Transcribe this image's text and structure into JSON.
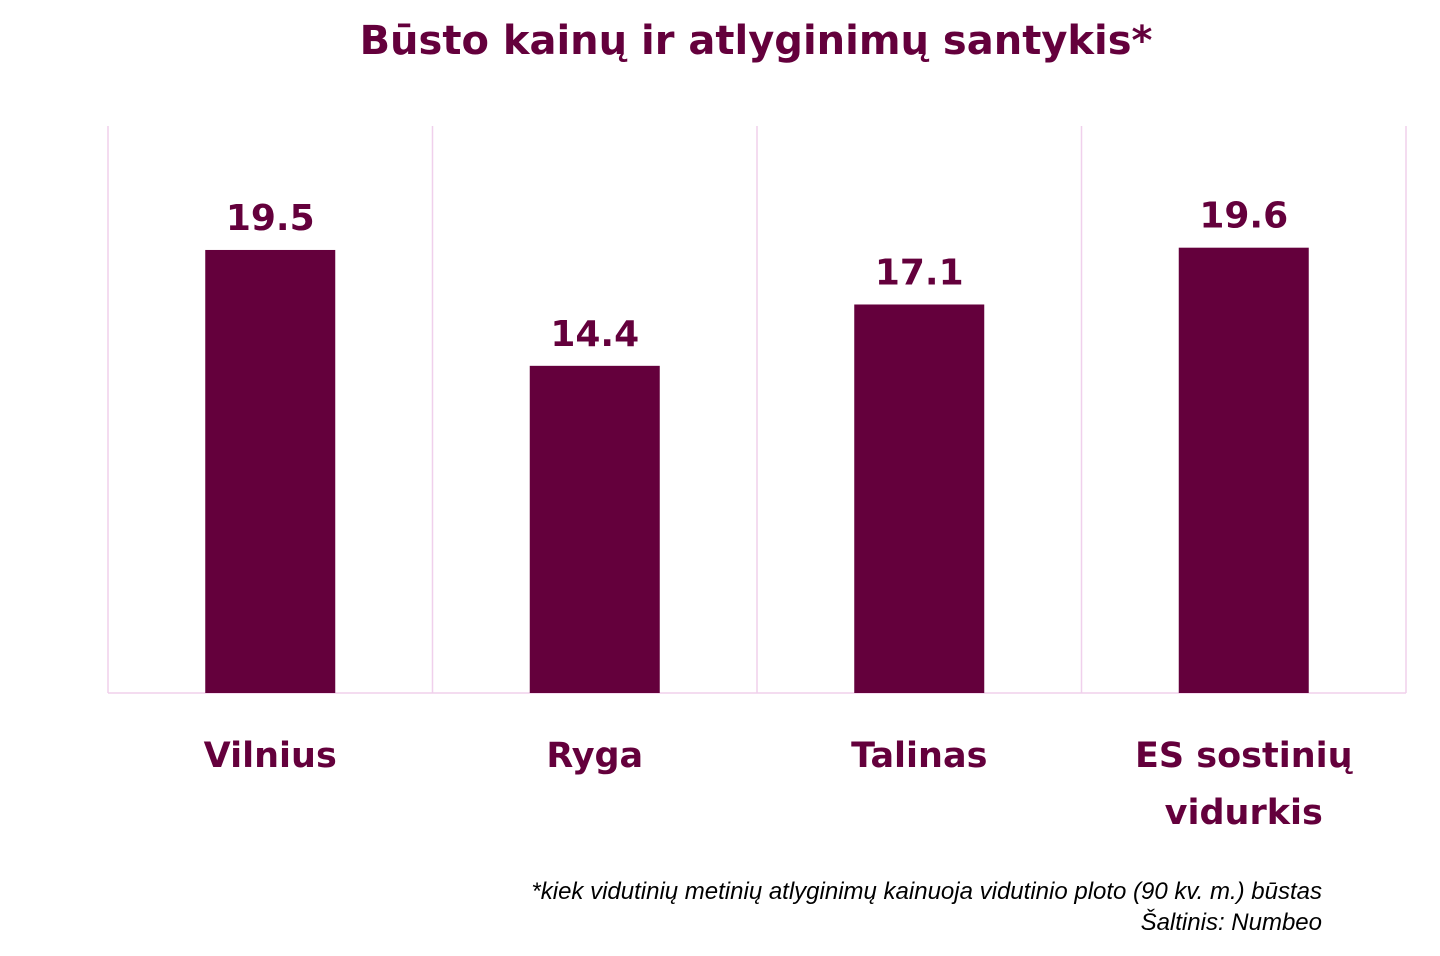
{
  "chart_data": {
    "type": "bar",
    "title": "Būsto kainų ir atlyginimų santykis*",
    "categories": [
      [
        "Vilnius"
      ],
      [
        "Ryga"
      ],
      [
        "Talinas"
      ],
      [
        "ES sostinių",
        "vidurkis"
      ]
    ],
    "values": [
      19.5,
      14.4,
      17.1,
      19.6
    ],
    "value_labels": [
      "19.5",
      "14.4",
      "17.1",
      "19.6"
    ],
    "ylim": [
      0,
      25
    ],
    "xlabel": "",
    "ylabel": "",
    "grid": "vertical separators",
    "legend": "none",
    "bar_color": "#64003c",
    "grid_color": "#f0d0ec",
    "text_color": "#64003c"
  },
  "footnote": {
    "note": "*kiek vidutinių metinių atlyginimų kainuoja vidutinio ploto (90 kv. m.) būstas",
    "source": "Šaltinis: Numbeo"
  }
}
